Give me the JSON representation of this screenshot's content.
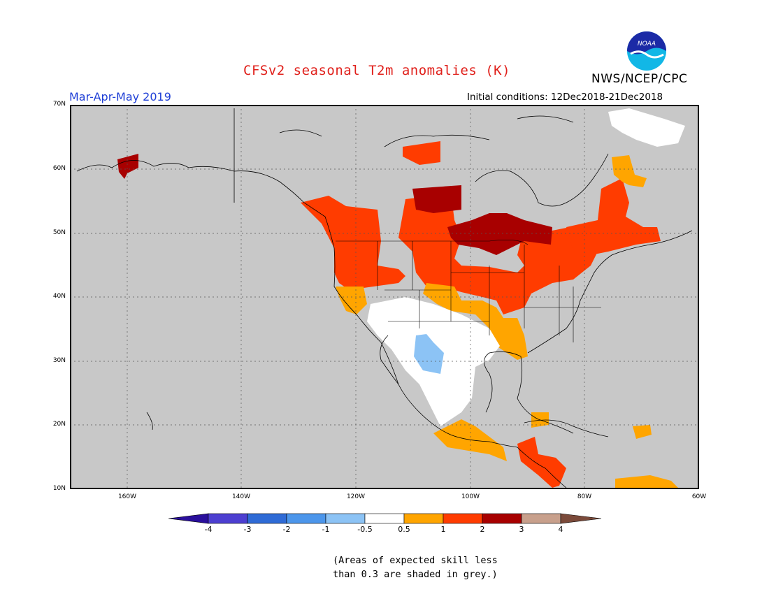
{
  "title": "CFSv2 seasonal T2m anomalies (K)",
  "agency": "NWS/NCEP/CPC",
  "logo_text": "NOAA",
  "period": "Mar-Apr-May 2019",
  "initial_conditions": "Initial conditions: 12Dec2018-21Dec2018",
  "lat_labels": [
    "70N",
    "60N",
    "50N",
    "40N",
    "30N",
    "20N",
    "10N"
  ],
  "lon_labels": [
    "160W",
    "140W",
    "120W",
    "100W",
    "80W",
    "60W"
  ],
  "colorbar": {
    "labels": [
      "-4",
      "-3",
      "-2",
      "-1",
      "-0.5",
      "0.5",
      "1",
      "2",
      "3",
      "4"
    ],
    "colors": [
      "#2a0f9c",
      "#4d3fd1",
      "#2f6bd6",
      "#4c96eb",
      "#8cc3f5",
      "#ffffff",
      "#ffa500",
      "#ff3c00",
      "#a80000",
      "#c8a08c",
      "#7b4a3a"
    ]
  },
  "note_line1": "(Areas of expected skill less",
  "note_line2": "than 0.3 are shaded in grey.)",
  "colors": {
    "background_grey": "#c8c8c8",
    "orange": "#ffa500",
    "red": "#ff3c00",
    "dark_red": "#a80000",
    "light_blue": "#8cc3f5",
    "white": "#ffffff"
  }
}
